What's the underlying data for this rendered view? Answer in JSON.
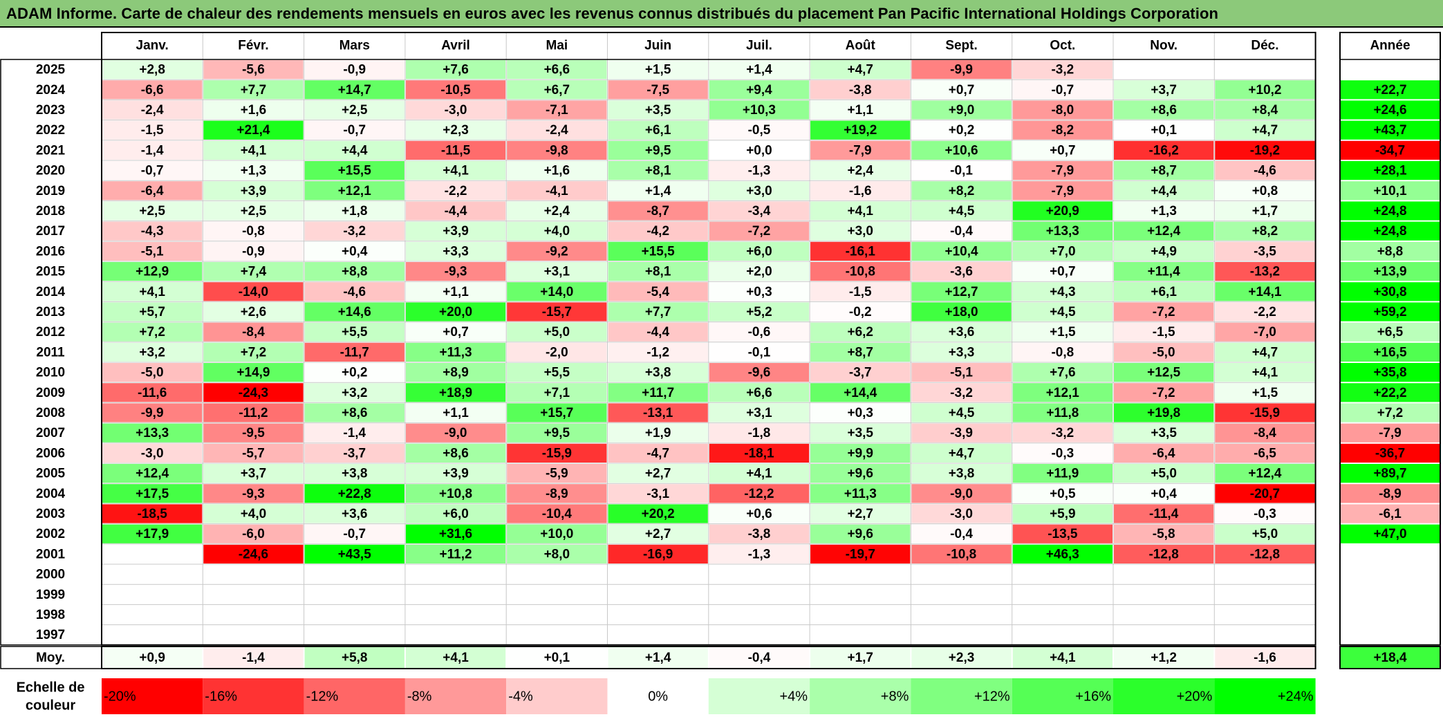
{
  "title": "ADAM Informe. Carte de chaleur des rendements mensuels en euros avec les revenus connus distribués du placement Pan Pacific International Holdings Corporation",
  "chart_data": {
    "type": "heatmap",
    "title": "ADAM Informe. Carte de chaleur des rendements mensuels en euros avec les revenus connus distribués du placement Pan Pacific International Holdings Corporation",
    "months": [
      "Janv.",
      "Févr.",
      "Mars",
      "Avril",
      "Mai",
      "Juin",
      "Juil.",
      "Août",
      "Sept.",
      "Oct.",
      "Nov.",
      "Déc."
    ],
    "year_header": "Année",
    "rows": [
      {
        "year": "2025",
        "values": [
          2.8,
          -5.6,
          -0.9,
          7.6,
          6.6,
          1.5,
          1.4,
          4.7,
          -9.9,
          -3.2,
          null,
          null
        ],
        "annual": null
      },
      {
        "year": "2024",
        "values": [
          -6.6,
          7.7,
          14.7,
          -10.5,
          6.7,
          -7.5,
          9.4,
          -3.8,
          0.7,
          -0.7,
          3.7,
          10.2
        ],
        "annual": 22.7
      },
      {
        "year": "2023",
        "values": [
          -2.4,
          1.6,
          2.5,
          -3.0,
          -7.1,
          3.5,
          10.3,
          1.1,
          9.0,
          -8.0,
          8.6,
          8.4
        ],
        "annual": 24.6
      },
      {
        "year": "2022",
        "values": [
          -1.5,
          21.4,
          -0.7,
          2.3,
          -2.4,
          6.1,
          -0.5,
          19.2,
          0.2,
          -8.2,
          0.1,
          4.7
        ],
        "annual": 43.7
      },
      {
        "year": "2021",
        "values": [
          -1.4,
          4.1,
          4.4,
          -11.5,
          -9.8,
          9.5,
          0.0,
          -7.9,
          10.6,
          0.7,
          -16.2,
          -19.2
        ],
        "annual": -34.7
      },
      {
        "year": "2020",
        "values": [
          -0.7,
          1.3,
          15.5,
          4.1,
          1.6,
          8.1,
          -1.3,
          2.4,
          -0.1,
          -7.9,
          8.7,
          -4.6
        ],
        "annual": 28.1
      },
      {
        "year": "2019",
        "values": [
          -6.4,
          3.9,
          12.1,
          -2.2,
          -4.1,
          1.4,
          3.0,
          -1.6,
          8.2,
          -7.9,
          4.4,
          0.8
        ],
        "annual": 10.1
      },
      {
        "year": "2018",
        "values": [
          2.5,
          2.5,
          1.8,
          -4.4,
          2.4,
          -8.7,
          -3.4,
          4.1,
          4.5,
          20.9,
          1.3,
          1.7
        ],
        "annual": 24.8
      },
      {
        "year": "2017",
        "values": [
          -4.3,
          -0.8,
          -3.2,
          3.9,
          4.0,
          -4.2,
          -7.2,
          3.0,
          -0.4,
          13.3,
          12.4,
          8.2
        ],
        "annual": 24.8
      },
      {
        "year": "2016",
        "values": [
          -5.1,
          -0.9,
          0.4,
          3.3,
          -9.2,
          15.5,
          6.0,
          -16.1,
          10.4,
          7.0,
          4.9,
          -3.5
        ],
        "annual": 8.8
      },
      {
        "year": "2015",
        "values": [
          12.9,
          7.4,
          8.8,
          -9.3,
          3.1,
          8.1,
          2.0,
          -10.8,
          -3.6,
          0.7,
          11.4,
          -13.2
        ],
        "annual": 13.9
      },
      {
        "year": "2014",
        "values": [
          4.1,
          -14.0,
          -4.6,
          1.1,
          14.0,
          -5.4,
          0.3,
          -1.5,
          12.7,
          4.3,
          6.1,
          14.1
        ],
        "annual": 30.8
      },
      {
        "year": "2013",
        "values": [
          5.7,
          2.6,
          14.6,
          20.0,
          -15.7,
          7.7,
          5.2,
          -0.2,
          18.0,
          4.5,
          -7.2,
          -2.2
        ],
        "annual": 59.2
      },
      {
        "year": "2012",
        "values": [
          7.2,
          -8.4,
          5.5,
          0.7,
          5.0,
          -4.4,
          -0.6,
          6.2,
          3.6,
          1.5,
          -1.5,
          -7.0
        ],
        "annual": 6.5
      },
      {
        "year": "2011",
        "values": [
          3.2,
          7.2,
          -11.7,
          11.3,
          -2.0,
          -1.2,
          -0.1,
          8.7,
          3.3,
          -0.8,
          -5.0,
          4.7
        ],
        "annual": 16.5
      },
      {
        "year": "2010",
        "values": [
          -5.0,
          14.9,
          0.2,
          8.9,
          5.5,
          3.8,
          -9.6,
          -3.7,
          -5.1,
          7.6,
          12.5,
          4.1
        ],
        "annual": 35.8
      },
      {
        "year": "2009",
        "values": [
          -11.6,
          -24.3,
          3.2,
          18.9,
          7.1,
          11.7,
          6.6,
          14.4,
          -3.2,
          12.1,
          -7.2,
          1.5
        ],
        "annual": 22.2
      },
      {
        "year": "2008",
        "values": [
          -9.9,
          -11.2,
          8.6,
          1.1,
          15.7,
          -13.1,
          3.1,
          0.3,
          4.5,
          11.8,
          19.8,
          -15.9
        ],
        "annual": 7.2
      },
      {
        "year": "2007",
        "values": [
          13.3,
          -9.5,
          -1.4,
          -9.0,
          9.5,
          1.9,
          -1.8,
          3.5,
          -3.9,
          -3.2,
          3.5,
          -8.4
        ],
        "annual": -7.9
      },
      {
        "year": "2006",
        "values": [
          -3.0,
          -5.7,
          -3.7,
          8.6,
          -15.9,
          -4.7,
          -18.1,
          9.9,
          4.7,
          -0.3,
          -6.4,
          -6.5
        ],
        "annual": -36.7
      },
      {
        "year": "2005",
        "values": [
          12.4,
          3.7,
          3.8,
          3.9,
          -5.9,
          2.7,
          4.1,
          9.6,
          3.8,
          11.9,
          5.0,
          12.4
        ],
        "annual": 89.7
      },
      {
        "year": "2004",
        "values": [
          17.5,
          -9.3,
          22.8,
          10.8,
          -8.9,
          -3.1,
          -12.2,
          11.3,
          -9.0,
          0.5,
          0.4,
          -20.7
        ],
        "annual": -8.9
      },
      {
        "year": "2003",
        "values": [
          -18.5,
          4.0,
          3.6,
          6.0,
          -10.4,
          20.2,
          0.6,
          2.7,
          -3.0,
          5.9,
          -11.4,
          -0.3
        ],
        "annual": -6.1
      },
      {
        "year": "2002",
        "values": [
          17.9,
          -6.0,
          -0.7,
          31.6,
          10.0,
          2.7,
          -3.8,
          9.6,
          -0.4,
          -13.5,
          -5.8,
          5.0
        ],
        "annual": 47.0
      },
      {
        "year": "2001",
        "values": [
          null,
          -24.6,
          43.5,
          11.2,
          8.0,
          -16.9,
          -1.3,
          -19.7,
          -10.8,
          46.3,
          -12.8,
          -12.8
        ],
        "annual": null
      },
      {
        "year": "2000",
        "values": [
          null,
          null,
          null,
          null,
          null,
          null,
          null,
          null,
          null,
          null,
          null,
          null
        ],
        "annual": null
      },
      {
        "year": "1999",
        "values": [
          null,
          null,
          null,
          null,
          null,
          null,
          null,
          null,
          null,
          null,
          null,
          null
        ],
        "annual": null
      },
      {
        "year": "1998",
        "values": [
          null,
          null,
          null,
          null,
          null,
          null,
          null,
          null,
          null,
          null,
          null,
          null
        ],
        "annual": null
      },
      {
        "year": "1997",
        "values": [
          null,
          null,
          null,
          null,
          null,
          null,
          null,
          null,
          null,
          null,
          null,
          null
        ],
        "annual": null
      }
    ],
    "average": {
      "label": "Moy.",
      "values": [
        0.9,
        -1.4,
        5.8,
        4.1,
        0.1,
        1.4,
        -0.4,
        1.7,
        2.3,
        4.1,
        1.2,
        -1.6
      ],
      "annual": 18.4
    },
    "color_scale": {
      "label_line1": "Echelle de",
      "label_line2": "couleur",
      "stops": [
        {
          "label": "-20%",
          "value": -20
        },
        {
          "label": "-16%",
          "value": -16
        },
        {
          "label": "-12%",
          "value": -12
        },
        {
          "label": "-8%",
          "value": -8
        },
        {
          "label": "-4%",
          "value": -4
        },
        {
          "label": "0%",
          "value": 0
        },
        {
          "label": "+4%",
          "value": 4
        },
        {
          "label": "+8%",
          "value": 8
        },
        {
          "label": "+12%",
          "value": 12
        },
        {
          "label": "+16%",
          "value": 16
        },
        {
          "label": "+20%",
          "value": 20
        },
        {
          "label": "+24%",
          "value": 24
        }
      ]
    },
    "colors": {
      "negative": "#ff0000",
      "neutral": "#ffffff",
      "positive": "#00ff00"
    }
  }
}
